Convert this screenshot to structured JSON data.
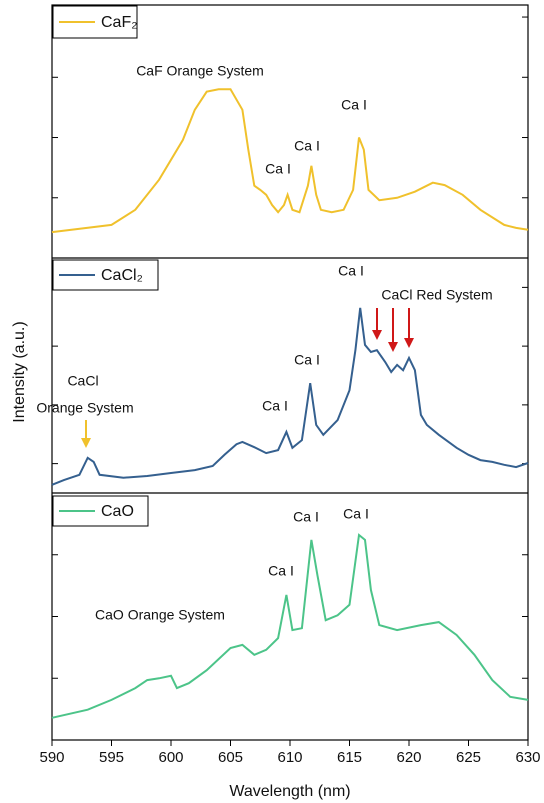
{
  "chart_data": [
    {
      "type": "line",
      "xlim": [
        590,
        630
      ],
      "ylim": [
        0,
        4.2
      ],
      "yticks": [
        1,
        2,
        3,
        4
      ],
      "series": [
        {
          "name": "CaF₂",
          "color": "#f0c12c",
          "x": [
            590,
            595,
            597,
            599,
            601,
            602,
            603,
            604,
            605,
            606,
            606.5,
            607,
            607.5,
            608,
            608.5,
            609,
            609.5,
            609.8,
            610.2,
            610.8,
            611.5,
            611.8,
            612.2,
            612.6,
            613.5,
            614.5,
            615.3,
            615.8,
            616.2,
            616.6,
            617.5,
            619,
            620.5,
            622,
            623,
            624.5,
            626,
            628,
            629,
            630
          ],
          "values": [
            0.43,
            0.55,
            0.8,
            1.3,
            1.96,
            2.46,
            2.76,
            2.8,
            2.8,
            2.46,
            1.8,
            1.2,
            1.13,
            1.05,
            0.88,
            0.76,
            0.88,
            1.05,
            0.8,
            0.76,
            1.2,
            1.53,
            1.05,
            0.8,
            0.76,
            0.8,
            1.13,
            2.0,
            1.8,
            1.13,
            0.96,
            1.0,
            1.1,
            1.25,
            1.21,
            1.05,
            0.8,
            0.55,
            0.5,
            0.47
          ]
        }
      ],
      "annotations": [
        "CaF Orange System",
        "Ca I",
        "Ca I",
        "Ca I"
      ]
    },
    {
      "type": "line",
      "xlim": [
        590,
        630
      ],
      "ylim": [
        0,
        4
      ],
      "yticks": [
        0.5,
        1.5,
        2.5,
        3.5
      ],
      "ylabel": "Intensity (a.u.)",
      "series": [
        {
          "name": "CaCl₂",
          "color": "#35608f",
          "x": [
            590,
            591,
            592.3,
            593,
            593.5,
            594,
            596,
            598,
            600,
            602,
            603.5,
            604.5,
            605.5,
            606,
            607,
            608,
            609,
            609.7,
            610.2,
            611,
            611.7,
            612.2,
            612.8,
            614,
            615,
            615.5,
            615.9,
            616.3,
            616.8,
            617.3,
            618,
            618.5,
            619,
            619.5,
            620,
            620.5,
            621,
            621.5,
            622.5,
            624,
            625,
            626,
            627,
            628,
            629,
            630
          ],
          "values": [
            0.14,
            0.22,
            0.31,
            0.6,
            0.53,
            0.31,
            0.26,
            0.29,
            0.34,
            0.39,
            0.46,
            0.65,
            0.83,
            0.87,
            0.78,
            0.68,
            0.73,
            1.04,
            0.77,
            0.9,
            1.87,
            1.16,
            0.99,
            1.24,
            1.75,
            2.43,
            3.15,
            2.52,
            2.4,
            2.43,
            2.23,
            2.06,
            2.18,
            2.09,
            2.3,
            2.09,
            1.33,
            1.16,
            0.99,
            0.77,
            0.65,
            0.56,
            0.53,
            0.48,
            0.44,
            0.51
          ]
        }
      ],
      "annotations": [
        "Ca I",
        "CaCl Red System",
        "Ca I",
        "Ca I",
        "CaCl",
        "Orange System"
      ]
    },
    {
      "type": "line",
      "xlim": [
        590,
        630
      ],
      "ylim": [
        0,
        4
      ],
      "yticks": [
        1,
        2,
        3
      ],
      "xlabel": "Wavelength (nm)",
      "xticks": [
        590,
        595,
        600,
        605,
        610,
        615,
        620,
        625,
        630
      ],
      "series": [
        {
          "name": "CaO",
          "color": "#4cc489",
          "x": [
            590,
            593,
            595,
            597,
            598,
            599,
            600,
            600.5,
            601.5,
            603,
            605,
            606,
            607,
            608,
            609,
            609.7,
            610.2,
            611,
            611.8,
            612.3,
            613,
            614,
            615,
            615.8,
            616.3,
            616.8,
            617.5,
            619,
            621,
            622.5,
            624,
            625.5,
            627,
            628.5,
            630
          ],
          "values": [
            0.36,
            0.49,
            0.65,
            0.84,
            0.97,
            1.0,
            1.04,
            0.84,
            0.92,
            1.13,
            1.49,
            1.54,
            1.38,
            1.46,
            1.65,
            2.35,
            1.78,
            1.81,
            3.24,
            2.67,
            1.94,
            2.02,
            2.19,
            3.32,
            3.24,
            2.43,
            1.86,
            1.78,
            1.86,
            1.91,
            1.7,
            1.38,
            0.97,
            0.7,
            0.65
          ]
        }
      ],
      "annotations": [
        "Ca I",
        "Ca I",
        "Ca I",
        "CaO Orange System"
      ]
    }
  ]
}
